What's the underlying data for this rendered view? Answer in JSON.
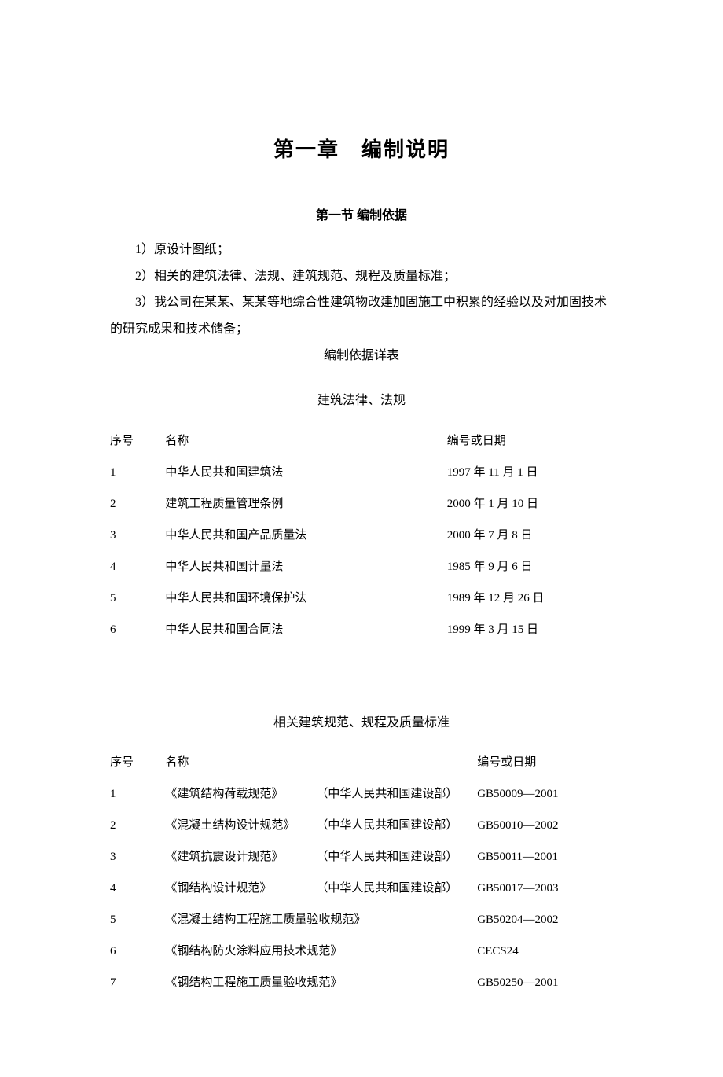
{
  "chapter_title": "第一章　编制说明",
  "section_title": "第一节 编制依据",
  "paragraphs": {
    "p1": "1）原设计图纸；",
    "p2": "2）相关的建筑法律、法规、建筑规范、规程及质量标准；",
    "p3": "3）我公司在某某、某某等地综合性建筑物改建加固施工中积累的经验以及对加固技术的研究成果和技术储备；"
  },
  "detail_table_title": "编制依据详表",
  "table1": {
    "caption": "建筑法律、法规",
    "headers": {
      "seq": "序号",
      "name": "名称",
      "code": "编号或日期"
    },
    "rows": [
      {
        "seq": "1",
        "name": "中华人民共和国建筑法",
        "code": "1997 年 11 月 1 日"
      },
      {
        "seq": "2",
        "name": "建筑工程质量管理条例",
        "code": "2000 年 1 月 10 日"
      },
      {
        "seq": "3",
        "name": "中华人民共和国产品质量法",
        "code": "2000 年 7 月 8 日"
      },
      {
        "seq": "4",
        "name": "中华人民共和国计量法",
        "code": "1985 年 9 月 6 日"
      },
      {
        "seq": "5",
        "name": "中华人民共和国环境保护法",
        "code": "1989 年 12 月 26 日"
      },
      {
        "seq": "6",
        "name": "中华人民共和国合同法",
        "code": "1999 年 3 月 15 日"
      }
    ]
  },
  "table2": {
    "caption": "相关建筑规范、规程及质量标准",
    "headers": {
      "seq": "序号",
      "name": "名称",
      "code": "编号或日期"
    },
    "rows": [
      {
        "seq": "1",
        "name": "《建筑结构荷载规范》",
        "publisher": "（中华人民共和国建设部）",
        "code": "GB50009—2001"
      },
      {
        "seq": "2",
        "name": "《混凝土结构设计规范》",
        "publisher": "（中华人民共和国建设部）",
        "code": "GB50010—2002"
      },
      {
        "seq": "3",
        "name": "《建筑抗震设计规范》",
        "publisher": "（中华人民共和国建设部）",
        "code": "GB50011—2001"
      },
      {
        "seq": "4",
        "name": "《钢结构设计规范》",
        "publisher": "（中华人民共和国建设部）",
        "code": "GB50017—2003"
      },
      {
        "seq": "5",
        "name": "《混凝土结构工程施工质量验收规范》",
        "publisher": "",
        "code": "GB50204—2002"
      },
      {
        "seq": "6",
        "name": "《钢结构防火涂料应用技术规范》",
        "publisher": "",
        "code": "CECS24"
      },
      {
        "seq": "7",
        "name": "《钢结构工程施工质量验收规范》",
        "publisher": "",
        "code": "GB50250—2001"
      }
    ]
  }
}
